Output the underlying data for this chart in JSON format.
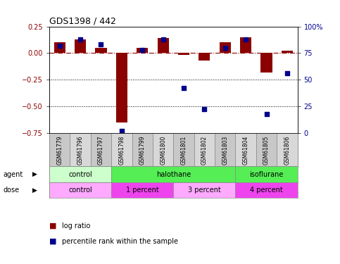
{
  "title": "GDS1398 / 442",
  "samples": [
    "GSM61779",
    "GSM61796",
    "GSM61797",
    "GSM61798",
    "GSM61799",
    "GSM61800",
    "GSM61801",
    "GSM61802",
    "GSM61803",
    "GSM61804",
    "GSM61805",
    "GSM61806"
  ],
  "log_ratio": [
    0.1,
    0.13,
    0.05,
    -0.65,
    0.05,
    0.14,
    -0.02,
    -0.07,
    0.1,
    0.15,
    -0.18,
    0.02
  ],
  "percentile": [
    82,
    88,
    83,
    2,
    78,
    88,
    42,
    22,
    80,
    88,
    18,
    56
  ],
  "ylim": [
    -0.75,
    0.25
  ],
  "yticks_left": [
    -0.75,
    -0.5,
    -0.25,
    0,
    0.25
  ],
  "yticks_right": [
    0,
    25,
    50,
    75,
    100
  ],
  "ytick_right_labels": [
    "0",
    "25",
    "50",
    "75",
    "100%"
  ],
  "hline_y": 0,
  "dotted_lines": [
    -0.25,
    -0.5
  ],
  "bar_color": "#8B0000",
  "dot_color": "#00008B",
  "agent_groups": [
    {
      "label": "control",
      "start": 0,
      "end": 3,
      "color": "#CCFFCC"
    },
    {
      "label": "halothane",
      "start": 3,
      "end": 9,
      "color": "#55EE55"
    },
    {
      "label": "isoflurane",
      "start": 9,
      "end": 12,
      "color": "#55EE55"
    }
  ],
  "dose_groups": [
    {
      "label": "control",
      "start": 0,
      "end": 3,
      "color": "#FFAAFF"
    },
    {
      "label": "1 percent",
      "start": 3,
      "end": 6,
      "color": "#EE44EE"
    },
    {
      "label": "3 percent",
      "start": 6,
      "end": 9,
      "color": "#FFAAFF"
    },
    {
      "label": "4 percent",
      "start": 9,
      "end": 12,
      "color": "#EE44EE"
    }
  ],
  "sample_cell_color_even": "#C8C8C8",
  "sample_cell_color_odd": "#D8D8D8",
  "bar_width": 0.55,
  "legend_items": [
    {
      "label": "log ratio",
      "color": "#8B0000"
    },
    {
      "label": "percentile rank within the sample",
      "color": "#00008B"
    }
  ]
}
